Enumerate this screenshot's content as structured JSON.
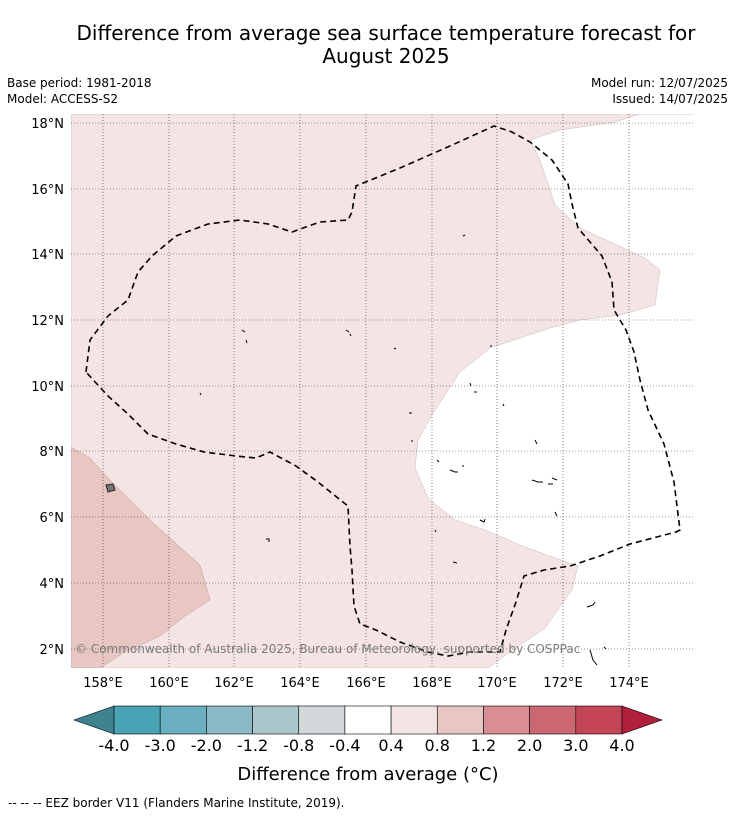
{
  "title": "Difference from average sea surface temperature forecast for August 2025",
  "base_period": "Base period: 1981-2018",
  "model": "Model: ACCESS-S2",
  "model_run": "Model run: 12/07/2025",
  "issued": "Issued: 14/07/2025",
  "copyright": "© Commonwealth of Australia 2025, Bureau of Meteorology, supported by COSPPac",
  "map": {
    "lat_labels": [
      "18°N",
      "16°N",
      "14°N",
      "12°N",
      "10°N",
      "8°N",
      "6°N",
      "4°N",
      "2°N"
    ],
    "lon_labels": [
      "158°E",
      "160°E",
      "162°E",
      "164°E",
      "166°E",
      "168°E",
      "170°E",
      "172°E",
      "174°E"
    ],
    "lon_range": [
      157,
      176
    ],
    "lat_range": [
      1.4,
      18.3
    ]
  },
  "colorbar": {
    "title": "Difference from average (°C)",
    "tick_labels": [
      "-4.0",
      "-3.0",
      "-2.0",
      "-1.2",
      "-0.8",
      "-0.4",
      "0.4",
      "0.8",
      "1.2",
      "2.0",
      "3.0",
      "4.0"
    ],
    "colors": [
      "#3f8290",
      "#48a3b5",
      "#6aafbf",
      "#8ab8c4",
      "#a9c6cb",
      "#d2d7d9",
      "#ffffff",
      "#f4e4e4",
      "#e8c6c2",
      "#d98e96",
      "#cc6671",
      "#c44556",
      "#b0203d"
    ],
    "under_color": "#3f8290",
    "over_color": "#b0203d"
  },
  "legend_footer": "--  --  -- EEZ border V11 (Flanders Marine Institute, 2019)."
}
